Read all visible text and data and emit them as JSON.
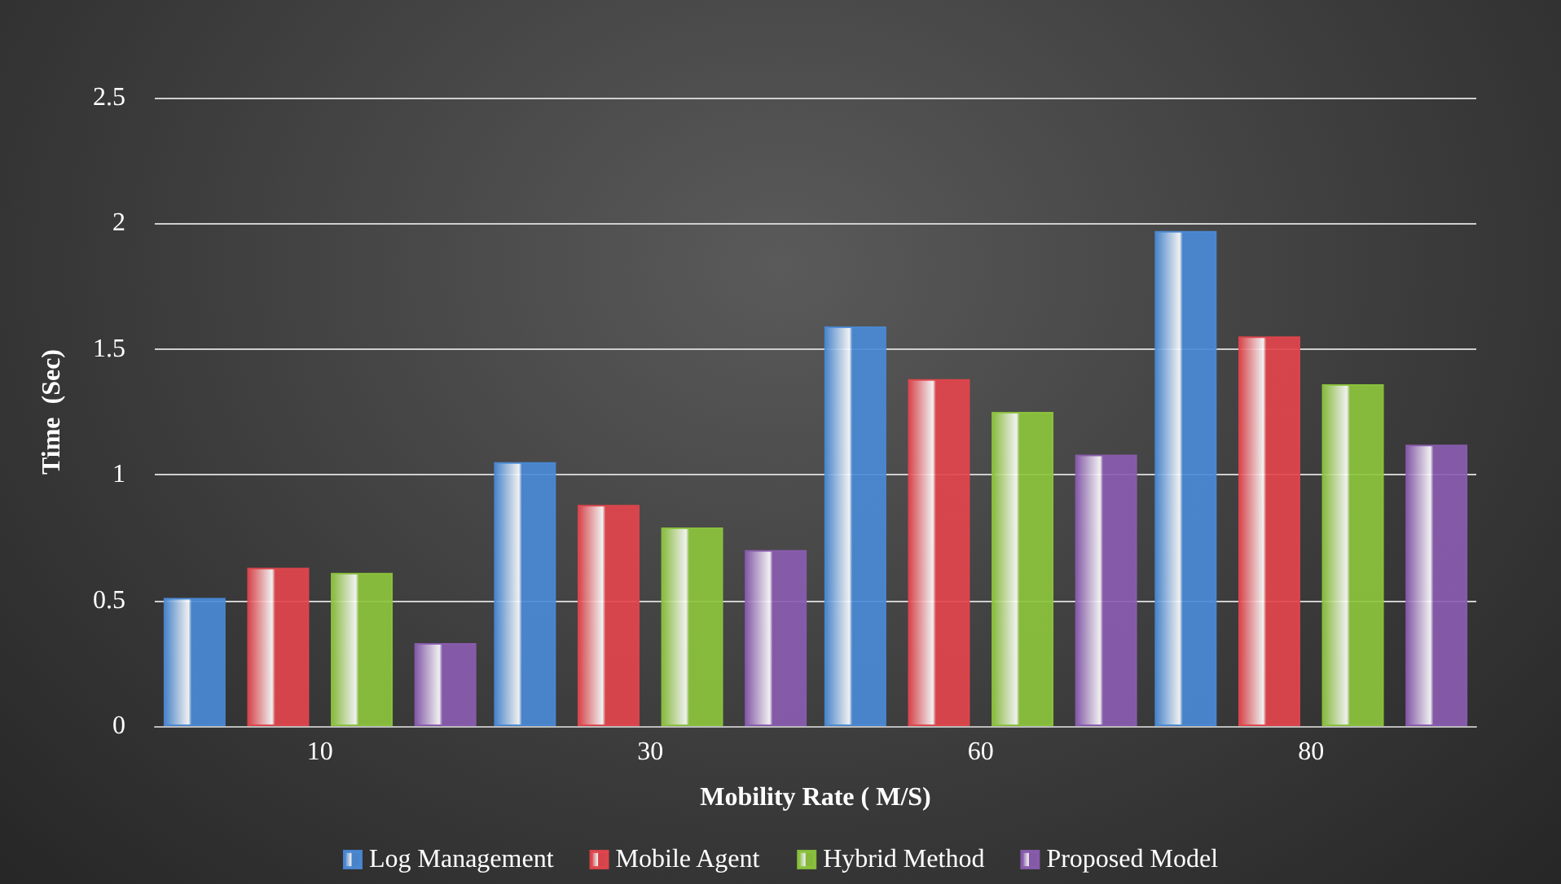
{
  "chart_data": {
    "type": "bar",
    "xlabel": "Mobility Rate ( M/S)",
    "ylabel": "Time  (Sec)",
    "categories": [
      "10",
      "30",
      "60",
      "80"
    ],
    "series": [
      {
        "name": "Log Management",
        "color": "#4a8ad6",
        "values": [
          0.51,
          1.05,
          1.59,
          1.97
        ]
      },
      {
        "name": "Mobile Agent",
        "color": "#e2454c",
        "values": [
          0.63,
          0.88,
          1.38,
          1.55
        ]
      },
      {
        "name": "Hybrid Method",
        "color": "#8cc43c",
        "values": [
          0.61,
          0.79,
          1.25,
          1.36
        ]
      },
      {
        "name": "Proposed Model",
        "color": "#8a5cb0",
        "values": [
          0.33,
          0.7,
          1.08,
          1.12
        ]
      }
    ],
    "ylim": [
      0,
      2.5
    ],
    "yticks": [
      0,
      0.5,
      1,
      1.5,
      2,
      2.5
    ],
    "grid": "y",
    "legend": "bottom"
  }
}
